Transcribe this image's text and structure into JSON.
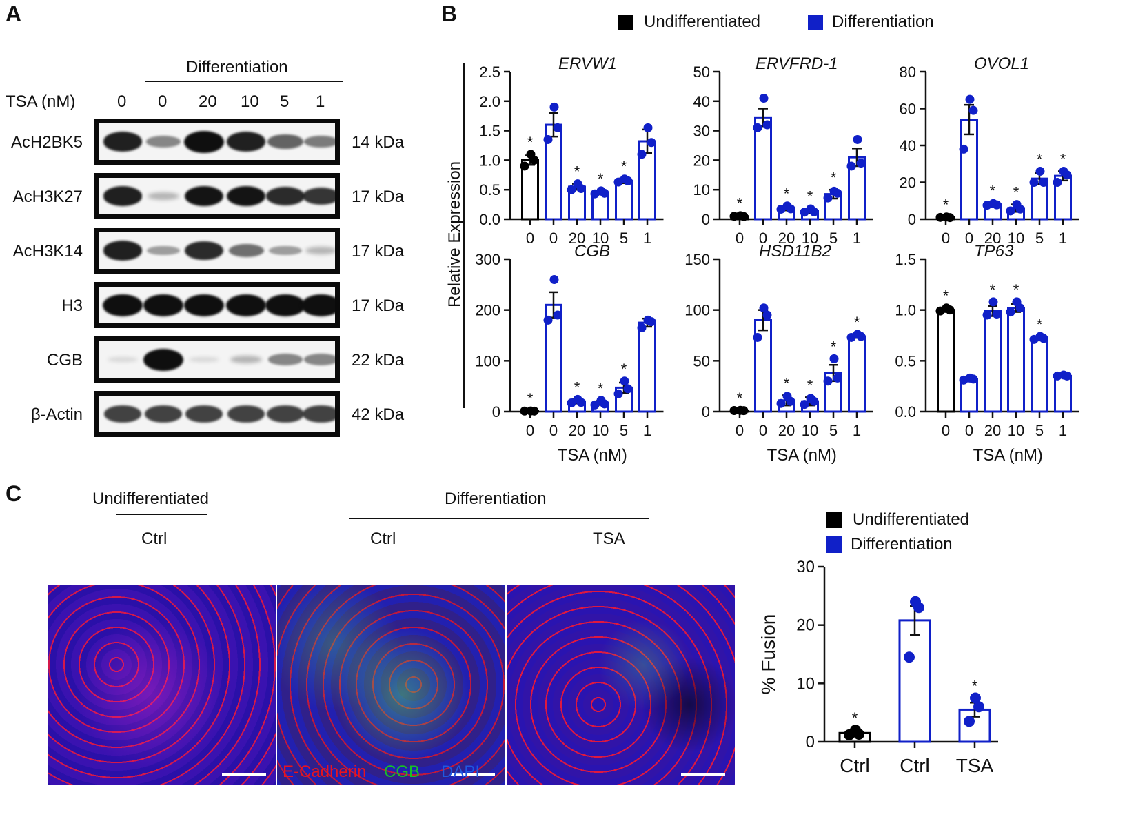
{
  "panel_a": {
    "letter": "A",
    "group_label": "Differentiation",
    "tsa_label": "TSA (nM)",
    "lanes": [
      "0",
      "0",
      "20",
      "10",
      "5",
      "1"
    ],
    "blots": [
      {
        "name": "AcH2BK5",
        "kda": "14 kDa",
        "intensity": [
          0.85,
          0.4,
          1.0,
          0.85,
          0.55,
          0.45
        ]
      },
      {
        "name": "AcH3K27",
        "kda": "17 kDa",
        "intensity": [
          0.85,
          0.2,
          0.9,
          0.9,
          0.8,
          0.75
        ]
      },
      {
        "name": "AcH3K14",
        "kda": "17 kDa",
        "intensity": [
          0.85,
          0.3,
          0.8,
          0.5,
          0.3,
          0.2
        ]
      },
      {
        "name": "H3",
        "kda": "17 kDa",
        "intensity": [
          1.0,
          1.0,
          1.0,
          1.0,
          1.0,
          1.0
        ]
      },
      {
        "name": "CGB",
        "kda": "22 kDa",
        "intensity": [
          0.05,
          1.0,
          0.05,
          0.2,
          0.4,
          0.4
        ]
      },
      {
        "name": "β-Actin",
        "kda": "42 kDa",
        "intensity": [
          0.7,
          0.7,
          0.7,
          0.7,
          0.7,
          0.7
        ]
      }
    ]
  },
  "panel_b": {
    "letter": "B",
    "legend": [
      {
        "label": "Undifferentiated",
        "color": "#000000"
      },
      {
        "label": "Differentiation",
        "color": "#1020c8"
      }
    ],
    "ylabel": "Relative Expression",
    "xlabel": "TSA (nM)",
    "tick_labels": [
      "0",
      "0",
      "20",
      "10",
      "5",
      "1"
    ]
  },
  "panel_c": {
    "letter": "C",
    "undiff_label": "Undifferentiated",
    "diff_label": "Differentiation",
    "image_labels": [
      "Ctrl",
      "Ctrl",
      "TSA"
    ],
    "stain_labels": [
      {
        "text": "E-Cadherin",
        "color": "#e8141e"
      },
      {
        "text": "CGB",
        "color": "#19c025"
      },
      {
        "text": "DAPI",
        "color": "#1f58e0"
      }
    ],
    "legend": [
      {
        "label": "Undifferentiated",
        "color": "#000000"
      },
      {
        "label": "Differentiation",
        "color": "#1020c8"
      }
    ]
  },
  "chart_data": [
    {
      "type": "bar",
      "title": "ERVW1",
      "categories": [
        "0",
        "0",
        "20",
        "10",
        "5",
        "1"
      ],
      "groups": [
        "Undifferentiated",
        "Differentiation",
        "Differentiation",
        "Differentiation",
        "Differentiation",
        "Differentiation"
      ],
      "values": [
        1.0,
        1.6,
        0.55,
        0.45,
        0.65,
        1.32
      ],
      "errors": [
        0.08,
        0.2,
        0.05,
        0.03,
        0.04,
        0.2
      ],
      "points": [
        [
          1.1,
          1.0,
          0.9
        ],
        [
          1.9,
          1.55,
          1.35
        ],
        [
          0.6,
          0.52,
          0.5
        ],
        [
          0.48,
          0.44,
          0.43
        ],
        [
          0.68,
          0.65,
          0.63
        ],
        [
          1.55,
          1.3,
          1.1
        ]
      ],
      "significant": [
        true,
        false,
        true,
        true,
        true,
        false
      ],
      "ylim": [
        0,
        2.5
      ],
      "yticks": [
        "0.0",
        "0.5",
        "1.0",
        "1.5",
        "2.0",
        "2.5"
      ],
      "xlabel": "",
      "ylabel": "Relative Expression"
    },
    {
      "type": "bar",
      "title": "ERVFRD-1",
      "categories": [
        "0",
        "0",
        "20",
        "10",
        "5",
        "1"
      ],
      "groups": [
        "Undifferentiated",
        "Differentiation",
        "Differentiation",
        "Differentiation",
        "Differentiation",
        "Differentiation"
      ],
      "values": [
        1.0,
        34.5,
        3.8,
        2.8,
        8.5,
        21.0
      ],
      "errors": [
        0.3,
        3.0,
        0.8,
        0.8,
        1.5,
        3.0
      ],
      "points": [
        [
          1.2,
          0.9,
          1.0
        ],
        [
          41.0,
          32.0,
          31.0
        ],
        [
          4.5,
          3.5,
          3.4
        ],
        [
          3.5,
          2.5,
          2.4
        ],
        [
          9.5,
          8.8,
          7.2
        ],
        [
          27.0,
          19.0,
          18.0
        ]
      ],
      "significant": [
        true,
        false,
        true,
        true,
        true,
        false
      ],
      "ylim": [
        0,
        50
      ],
      "yticks": [
        "0",
        "10",
        "20",
        "30",
        "40",
        "50"
      ],
      "xlabel": "",
      "ylabel": ""
    },
    {
      "type": "bar",
      "title": "OVOL1",
      "categories": [
        "0",
        "0",
        "20",
        "10",
        "5",
        "1"
      ],
      "groups": [
        "Undifferentiated",
        "Differentiation",
        "Differentiation",
        "Differentiation",
        "Differentiation",
        "Differentiation"
      ],
      "values": [
        1.0,
        54.0,
        8.0,
        6.0,
        22.0,
        23.5
      ],
      "errors": [
        0.3,
        8.0,
        1.0,
        2.0,
        3.0,
        2.5
      ],
      "points": [
        [
          1.2,
          0.9,
          1.0
        ],
        [
          65.0,
          59.0,
          38.0
        ],
        [
          8.5,
          7.8,
          7.6
        ],
        [
          8.0,
          5.5,
          4.5
        ],
        [
          26.0,
          20.0,
          20.0
        ],
        [
          26.0,
          24.0,
          20.0
        ]
      ],
      "significant": [
        true,
        false,
        true,
        true,
        true,
        true
      ],
      "ylim": [
        0,
        80
      ],
      "yticks": [
        "0",
        "20",
        "40",
        "60",
        "80"
      ],
      "xlabel": "",
      "ylabel": ""
    },
    {
      "type": "bar",
      "title": "CGB",
      "categories": [
        "0",
        "0",
        "20",
        "10",
        "5",
        "1"
      ],
      "groups": [
        "Undifferentiated",
        "Differentiation",
        "Differentiation",
        "Differentiation",
        "Differentiation",
        "Differentiation"
      ],
      "values": [
        1.0,
        210.0,
        20.0,
        17.0,
        47.0,
        175.0
      ],
      "errors": [
        0.5,
        25.0,
        4.0,
        4.0,
        10.0,
        8.0
      ],
      "points": [
        [
          1.2,
          0.9,
          1.0
        ],
        [
          260.0,
          190.0,
          180.0
        ],
        [
          24.0,
          18.0,
          17.0
        ],
        [
          22.0,
          15.0,
          13.0
        ],
        [
          60.0,
          45.0,
          35.0
        ],
        [
          180.0,
          177.0,
          165.0
        ]
      ],
      "significant": [
        true,
        false,
        true,
        true,
        true,
        false
      ],
      "ylim": [
        0,
        300
      ],
      "yticks": [
        "0",
        "100",
        "200",
        "300"
      ],
      "xlabel": "TSA (nM)",
      "ylabel": "Relative Expression"
    },
    {
      "type": "bar",
      "title": "HSD11B2",
      "categories": [
        "0",
        "0",
        "20",
        "10",
        "5",
        "1"
      ],
      "groups": [
        "Undifferentiated",
        "Differentiation",
        "Differentiation",
        "Differentiation",
        "Differentiation",
        "Differentiation"
      ],
      "values": [
        1.0,
        90.0,
        11.0,
        10.0,
        38.0,
        74.0
      ],
      "errors": [
        0.3,
        10.0,
        5.0,
        4.0,
        8.0,
        1.5
      ],
      "points": [
        [
          1.2,
          0.9,
          1.0
        ],
        [
          102.0,
          95.0,
          73.0
        ],
        [
          15.0,
          10.0,
          8.0
        ],
        [
          13.0,
          10.0,
          7.0
        ],
        [
          52.0,
          33.0,
          30.0
        ],
        [
          76.0,
          74.0,
          73.0
        ]
      ],
      "significant": [
        true,
        false,
        true,
        true,
        true,
        true
      ],
      "ylim": [
        0,
        150
      ],
      "yticks": [
        "0",
        "50",
        "100",
        "150"
      ],
      "xlabel": "TSA (nM)",
      "ylabel": ""
    },
    {
      "type": "bar",
      "title": "TP63",
      "categories": [
        "0",
        "0",
        "20",
        "10",
        "5",
        "1"
      ],
      "groups": [
        "Undifferentiated",
        "Differentiation",
        "Differentiation",
        "Differentiation",
        "Differentiation",
        "Differentiation"
      ],
      "values": [
        1.0,
        0.32,
        0.99,
        1.02,
        0.72,
        0.35
      ],
      "errors": [
        0.02,
        0.02,
        0.05,
        0.04,
        0.02,
        0.01
      ],
      "points": [
        [
          1.02,
          1.0,
          0.99
        ],
        [
          0.33,
          0.32,
          0.31
        ],
        [
          1.08,
          0.96,
          0.95
        ],
        [
          1.08,
          1.02,
          0.98
        ],
        [
          0.74,
          0.72,
          0.71
        ],
        [
          0.36,
          0.35,
          0.35
        ]
      ],
      "significant": [
        true,
        false,
        true,
        true,
        true,
        false
      ],
      "ylim": [
        0,
        1.5
      ],
      "yticks": [
        "0.0",
        "0.5",
        "1.0",
        "1.5"
      ],
      "xlabel": "TSA (nM)",
      "ylabel": ""
    },
    {
      "type": "bar",
      "title": "",
      "categories": [
        "Ctrl",
        "Ctrl",
        "TSA"
      ],
      "groups": [
        "Undifferentiated",
        "Differentiation",
        "Differentiation"
      ],
      "values": [
        1.5,
        20.8,
        5.5
      ],
      "errors": [
        0.3,
        2.5,
        1.2
      ],
      "points": [
        [
          2.0,
          1.3,
          1.2
        ],
        [
          24.0,
          23.0,
          14.5
        ],
        [
          7.5,
          6.0,
          3.5
        ]
      ],
      "significant": [
        true,
        false,
        true
      ],
      "ylim": [
        0,
        30
      ],
      "yticks": [
        "0",
        "10",
        "20",
        "30"
      ],
      "xlabel": "",
      "ylabel": "% Fusion"
    }
  ]
}
